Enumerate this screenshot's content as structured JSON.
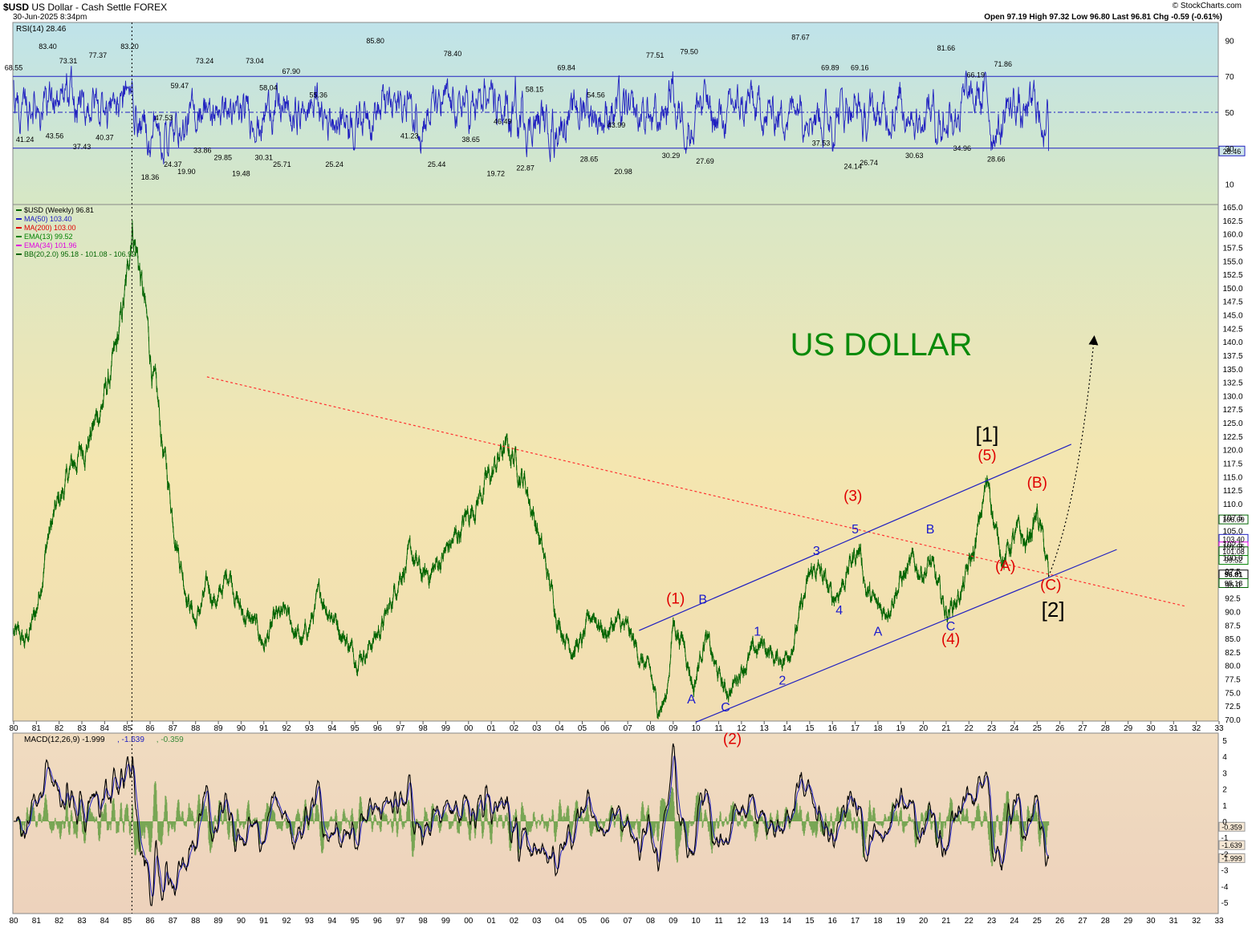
{
  "header": {
    "symbol": "$USD",
    "name": "US Dollar - Cash Settle",
    "exchange": "FOREX",
    "date": "30-Jun-2025 8:34pm",
    "ohlc": "Open 97.19  High 97.32  Low 96.80  Last 96.81  Chg -0.59 (-0.61%)",
    "brand": "© StockCharts.com"
  },
  "colors": {
    "price": "#006400",
    "rsi": "#2020c0",
    "channel": "#2020c0",
    "trend": "#ff3030",
    "wave_red": "#e00000",
    "wave_blue": "#1a1acc",
    "title": "#0a8a0a"
  },
  "chart_data": [
    {
      "panel": "rsi",
      "type": "line",
      "legend": "RSI(14) 28.46",
      "ylim": [
        0,
        100
      ],
      "y_ticks": [
        "90",
        "70",
        "50",
        "30",
        "10"
      ],
      "last_value": "28.46",
      "levels": [
        70,
        50,
        30
      ],
      "labels": [
        {
          "t": "68.55",
          "x": 1980.0,
          "v": 72
        },
        {
          "t": "41.24",
          "x": 1980.5,
          "v": 38
        },
        {
          "t": "83.40",
          "x": 1981.5,
          "v": 84
        },
        {
          "t": "43.56",
          "x": 1981.8,
          "v": 40
        },
        {
          "t": "73.31",
          "x": 1982.4,
          "v": 76
        },
        {
          "t": "37.43",
          "x": 1983.0,
          "v": 34
        },
        {
          "t": "77.37",
          "x": 1983.7,
          "v": 79
        },
        {
          "t": "40.37",
          "x": 1984.0,
          "v": 39
        },
        {
          "t": "83.20",
          "x": 1985.1,
          "v": 84
        },
        {
          "t": "18.36",
          "x": 1986.0,
          "v": 17
        },
        {
          "t": "47.53",
          "x": 1986.6,
          "v": 50
        },
        {
          "t": "59.47",
          "x": 1987.3,
          "v": 62
        },
        {
          "t": "24.37",
          "x": 1987.0,
          "v": 24
        },
        {
          "t": "19.90",
          "x": 1987.6,
          "v": 20
        },
        {
          "t": "73.24",
          "x": 1988.4,
          "v": 76
        },
        {
          "t": "33.86",
          "x": 1988.3,
          "v": 32
        },
        {
          "t": "29.85",
          "x": 1989.2,
          "v": 28
        },
        {
          "t": "19.48",
          "x": 1990.0,
          "v": 19
        },
        {
          "t": "73.04",
          "x": 1990.6,
          "v": 76
        },
        {
          "t": "58.04",
          "x": 1991.2,
          "v": 61
        },
        {
          "t": "30.31",
          "x": 1991.0,
          "v": 28
        },
        {
          "t": "67.90",
          "x": 1992.2,
          "v": 70
        },
        {
          "t": "25.71",
          "x": 1991.8,
          "v": 24
        },
        {
          "t": "55.36",
          "x": 1993.4,
          "v": 57
        },
        {
          "t": "25.24",
          "x": 1994.1,
          "v": 24
        },
        {
          "t": "85.80",
          "x": 1995.9,
          "v": 87
        },
        {
          "t": "41.23",
          "x": 1997.4,
          "v": 40
        },
        {
          "t": "25.44",
          "x": 1998.6,
          "v": 24
        },
        {
          "t": "78.40",
          "x": 1999.3,
          "v": 80
        },
        {
          "t": "38.65",
          "x": 2000.1,
          "v": 38
        },
        {
          "t": "46.49",
          "x": 2001.5,
          "v": 48
        },
        {
          "t": "19.72",
          "x": 2001.2,
          "v": 19
        },
        {
          "t": "58.15",
          "x": 2002.9,
          "v": 60
        },
        {
          "t": "22.87",
          "x": 2002.5,
          "v": 22
        },
        {
          "t": "69.84",
          "x": 2004.3,
          "v": 72
        },
        {
          "t": "54.56",
          "x": 2005.6,
          "v": 57
        },
        {
          "t": "43.99",
          "x": 2006.5,
          "v": 46
        },
        {
          "t": "28.65",
          "x": 2005.3,
          "v": 27
        },
        {
          "t": "20.98",
          "x": 2006.8,
          "v": 20
        },
        {
          "t": "77.51",
          "x": 2008.2,
          "v": 79
        },
        {
          "t": "79.50",
          "x": 2009.7,
          "v": 81
        },
        {
          "t": "30.29",
          "x": 2008.9,
          "v": 29
        },
        {
          "t": "27.69",
          "x": 2010.4,
          "v": 26
        },
        {
          "t": "87.67",
          "x": 2014.6,
          "v": 89
        },
        {
          "t": "69.89",
          "x": 2015.9,
          "v": 72
        },
        {
          "t": "37.53",
          "x": 2015.5,
          "v": 36
        },
        {
          "t": "69.16",
          "x": 2017.2,
          "v": 72
        },
        {
          "t": "24.14",
          "x": 2016.9,
          "v": 23
        },
        {
          "t": "26.74",
          "x": 2017.6,
          "v": 25
        },
        {
          "t": "30.63",
          "x": 2019.6,
          "v": 29
        },
        {
          "t": "81.66",
          "x": 2021.0,
          "v": 83
        },
        {
          "t": "66.19",
          "x": 2022.3,
          "v": 68
        },
        {
          "t": "34.96",
          "x": 2021.7,
          "v": 33
        },
        {
          "t": "71.86",
          "x": 2023.5,
          "v": 74
        },
        {
          "t": "28.66",
          "x": 2023.2,
          "v": 27
        }
      ]
    },
    {
      "panel": "price",
      "type": "line",
      "title": "US DOLLAR",
      "legend": [
        {
          "text": "$USD (Weekly) 96.81",
          "color": "#006400"
        },
        {
          "text": "MA(50) 103.40",
          "color": "#2020c0"
        },
        {
          "text": "MA(200) 103.00",
          "color": "#e00000"
        },
        {
          "text": "EMA(13) 99.52",
          "color": "#008000"
        },
        {
          "text": "EMA(34) 101.96",
          "color": "#e000e0"
        },
        {
          "text": "BB(20,2.0) 95.18 - 101.08 - 106.99",
          "color": "#006400"
        }
      ],
      "ylim": [
        70,
        165
      ],
      "y_ticks": [
        "165.0",
        "162.5",
        "160.0",
        "157.5",
        "155.0",
        "152.5",
        "150.0",
        "147.5",
        "145.0",
        "142.5",
        "140.0",
        "137.5",
        "135.0",
        "132.5",
        "130.0",
        "127.5",
        "125.0",
        "122.5",
        "120.0",
        "117.5",
        "115.0",
        "112.5",
        "110.0",
        "107.5",
        "105.0",
        "102.5",
        "100.0",
        "97.5",
        "95.0",
        "92.5",
        "90.0",
        "87.5",
        "85.0",
        "82.5",
        "80.0",
        "77.5",
        "75.0",
        "72.5",
        "70.0"
      ],
      "price_tags": [
        {
          "text": "106.99",
          "v": 107.0
        },
        {
          "text": "103.40",
          "v": 103.4
        },
        {
          "text": "101.96",
          "v": 102.0
        },
        {
          "text": "101.08",
          "v": 101.1
        },
        {
          "text": "99.52",
          "v": 99.5
        },
        {
          "text": "96.81",
          "v": 96.8
        },
        {
          "text": "95.18",
          "v": 95.2
        }
      ],
      "x_years": [
        1980,
        2033
      ],
      "x_ticks": [
        "80",
        "81",
        "82",
        "83",
        "84",
        "85",
        "86",
        "87",
        "88",
        "89",
        "90",
        "91",
        "92",
        "93",
        "94",
        "95",
        "96",
        "97",
        "98",
        "99",
        "00",
        "01",
        "02",
        "03",
        "04",
        "05",
        "06",
        "07",
        "08",
        "09",
        "10",
        "11",
        "12",
        "13",
        "14",
        "15",
        "16",
        "17",
        "18",
        "19",
        "20",
        "21",
        "22",
        "23",
        "24",
        "25",
        "26",
        "27",
        "28",
        "29",
        "30",
        "31",
        "32",
        "33"
      ],
      "series": [
        {
          "x": [
            1980.0,
            1980.5,
            1981.0,
            1981.5,
            1982.0,
            1982.5,
            1983.0,
            1983.5,
            1984.0,
            1984.5,
            1985.0,
            1985.2,
            1985.5,
            1986.0,
            1986.5,
            1987.0,
            1987.5,
            1988.0,
            1988.5,
            1989.0,
            1989.5,
            1990.0,
            1990.5,
            1991.0,
            1991.5,
            1992.0,
            1992.7,
            1993.5,
            1994.0,
            1994.5,
            1995.0,
            1995.5,
            1996.0,
            1996.5,
            1997.0,
            1997.5,
            1998.0,
            1998.5,
            1999.0,
            1999.5,
            2000.0,
            2000.5,
            2001.0,
            2001.5,
            2002.0,
            2002.5,
            2003.0,
            2003.5,
            2004.0,
            2004.5,
            2005.0,
            2005.5,
            2006.0,
            2006.5,
            2007.0,
            2007.5,
            2008.0,
            2008.3,
            2008.7,
            2009.0,
            2009.5,
            2009.9,
            2010.4,
            2010.8,
            2011.3,
            2011.6,
            2012.0,
            2012.5,
            2013.0,
            2013.5,
            2014.0,
            2014.5,
            2015.0,
            2015.3,
            2015.6,
            2016.0,
            2016.5,
            2016.9,
            2017.2,
            2017.5,
            2018.0,
            2018.3,
            2018.7,
            2019.0,
            2019.5,
            2020.0,
            2020.3,
            2020.7,
            2021.0,
            2021.4,
            2021.8,
            2022.3,
            2022.7,
            2022.9,
            2023.2,
            2023.6,
            2023.9,
            2024.2,
            2024.5,
            2024.8,
            2025.0,
            2025.3,
            2025.5
          ],
          "y": [
            86,
            84,
            90,
            104,
            110,
            116,
            120,
            124,
            130,
            137,
            151,
            163,
            155,
            138,
            122,
            108,
            96,
            88,
            94,
            92,
            98,
            90,
            88,
            84,
            88,
            89,
            84,
            93,
            90,
            86,
            82,
            83,
            86,
            90,
            98,
            100,
            96,
            98,
            101,
            104,
            108,
            112,
            115,
            120,
            119,
            114,
            106,
            96,
            88,
            84,
            84,
            90,
            86,
            88,
            86,
            82,
            78,
            72,
            74,
            88,
            84,
            76,
            86,
            80,
            75,
            76,
            80,
            82,
            84,
            81,
            82,
            88,
            96,
            98,
            96,
            92,
            96,
            100,
            102,
            94,
            90,
            90,
            94,
            96,
            98,
            98,
            99,
            93,
            90,
            92,
            95,
            102,
            112,
            114,
            104,
            100,
            103,
            104,
            102,
            106,
            108,
            102,
            96.8
          ]
        }
      ],
      "trendline": {
        "from": [
          1988.5,
          133.5
        ],
        "to": [
          2031.5,
          91.0
        ]
      },
      "channel_upper": {
        "from": [
          2007.5,
          86.5
        ],
        "to": [
          2026.5,
          121.0
        ]
      },
      "channel_lower": {
        "from": [
          2010.0,
          69.5
        ],
        "to": [
          2028.5,
          101.5
        ]
      },
      "projection": {
        "from": [
          2025.5,
          96.5
        ],
        "to": [
          2027.5,
          140.5
        ]
      },
      "peak_marker_x": 1985.2,
      "wave_labels": [
        {
          "t": "(1)",
          "x": 2009.1,
          "v": 91.5,
          "c": "red",
          "s": 19
        },
        {
          "t": "(2)",
          "x": 2011.6,
          "v": 65.5,
          "c": "red",
          "s": 19
        },
        {
          "t": "(3)",
          "x": 2016.9,
          "v": 110.5,
          "c": "red",
          "s": 19
        },
        {
          "t": "(4)",
          "x": 2021.2,
          "v": 84.0,
          "c": "red",
          "s": 19
        },
        {
          "t": "(5)",
          "x": 2022.8,
          "v": 118.0,
          "c": "red",
          "s": 19
        },
        {
          "t": "(A)",
          "x": 2023.6,
          "v": 97.5,
          "c": "red",
          "s": 19
        },
        {
          "t": "(B)",
          "x": 2025.0,
          "v": 113.0,
          "c": "red",
          "s": 19
        },
        {
          "t": "(C)",
          "x": 2025.6,
          "v": 94.0,
          "c": "red",
          "s": 19
        },
        {
          "t": "[1]",
          "x": 2022.8,
          "v": 121.5,
          "c": "black",
          "s": 26
        },
        {
          "t": "[2]",
          "x": 2025.7,
          "v": 89.0,
          "c": "black",
          "s": 26
        },
        {
          "t": "A",
          "x": 2009.8,
          "v": 73.0,
          "c": "blue",
          "s": 16
        },
        {
          "t": "B",
          "x": 2010.3,
          "v": 91.5,
          "c": "blue",
          "s": 16
        },
        {
          "t": "C",
          "x": 2011.3,
          "v": 71.5,
          "c": "blue",
          "s": 16
        },
        {
          "t": "1",
          "x": 2012.7,
          "v": 85.5,
          "c": "blue",
          "s": 16
        },
        {
          "t": "2",
          "x": 2013.8,
          "v": 76.5,
          "c": "blue",
          "s": 16
        },
        {
          "t": "3",
          "x": 2015.3,
          "v": 100.5,
          "c": "blue",
          "s": 16
        },
        {
          "t": "4",
          "x": 2016.3,
          "v": 89.5,
          "c": "blue",
          "s": 16
        },
        {
          "t": "5",
          "x": 2017.0,
          "v": 104.5,
          "c": "blue",
          "s": 16
        },
        {
          "t": "A",
          "x": 2018.0,
          "v": 85.5,
          "c": "blue",
          "s": 16
        },
        {
          "t": "B",
          "x": 2020.3,
          "v": 104.5,
          "c": "blue",
          "s": 16
        },
        {
          "t": "C",
          "x": 2021.2,
          "v": 86.5,
          "c": "blue",
          "s": 16
        }
      ]
    },
    {
      "panel": "macd",
      "type": "line",
      "legend": [
        {
          "text": "MACD(12,26,9) -1.999",
          "color": "#000000"
        },
        {
          "text": ", -1.639",
          "color": "#2020c0"
        },
        {
          "text": ", -0.359",
          "color": "#3a8a3a"
        }
      ],
      "ylim": [
        -5.5,
        5.5
      ],
      "y_ticks": [
        "5",
        "4",
        "3",
        "2",
        "1",
        "0",
        "-1",
        "-2",
        "-3",
        "-4",
        "-5"
      ],
      "value_tags": [
        "-0.359",
        "-1.639",
        "-1.999"
      ]
    }
  ]
}
